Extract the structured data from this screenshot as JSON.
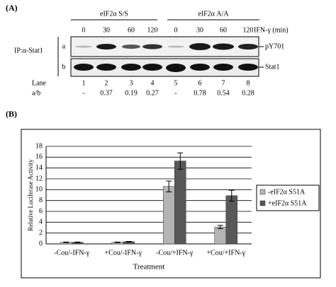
{
  "panel_a": {
    "label": "(A)",
    "groups": [
      "eIF2α S/S",
      "eIF2α A/A"
    ],
    "times": [
      "0",
      "30",
      "60",
      "120",
      "0",
      "30",
      "60",
      "120"
    ],
    "time_label": "IFN-γ (min)",
    "ip_label": "IP:α-Stat1",
    "rows": [
      "a",
      "b"
    ],
    "band_labels": [
      "pY701",
      "Stat1"
    ],
    "lane_label": "Lane",
    "lanes": [
      "1",
      "2",
      "3",
      "4",
      "5",
      "6",
      "7",
      "8"
    ],
    "ratio_label": "a/b",
    "ratios": [
      "-",
      "0.37",
      "0.19",
      "0.27",
      "-",
      "0.78",
      "0.54",
      "0.28"
    ]
  },
  "chart_data": {
    "type": "bar",
    "panel_label": "(B)",
    "ylabel": "Relative Luciferase Activity",
    "xlabel": "Treatment",
    "categories": [
      "-Cou/-IFN-γ",
      "+Cou/-IFN-γ",
      "-Cou/+IFN-γ",
      "+Cou/+IFN-γ"
    ],
    "series": [
      {
        "name": "-eIF2α S51A",
        "color": "#b4b4b4",
        "values": [
          0.3,
          0.3,
          10.6,
          3.1
        ],
        "errors": [
          0.05,
          0.05,
          1.0,
          0.3
        ]
      },
      {
        "name": "+eIF2α S51A",
        "color": "#585858",
        "values": [
          0.3,
          0.4,
          15.3,
          8.9
        ],
        "errors": [
          0.05,
          0.05,
          1.5,
          1.0
        ]
      }
    ],
    "ylim": [
      0,
      18
    ],
    "yticks": [
      0,
      2,
      4,
      6,
      8,
      10,
      12,
      14,
      16,
      18
    ],
    "grid": true
  }
}
